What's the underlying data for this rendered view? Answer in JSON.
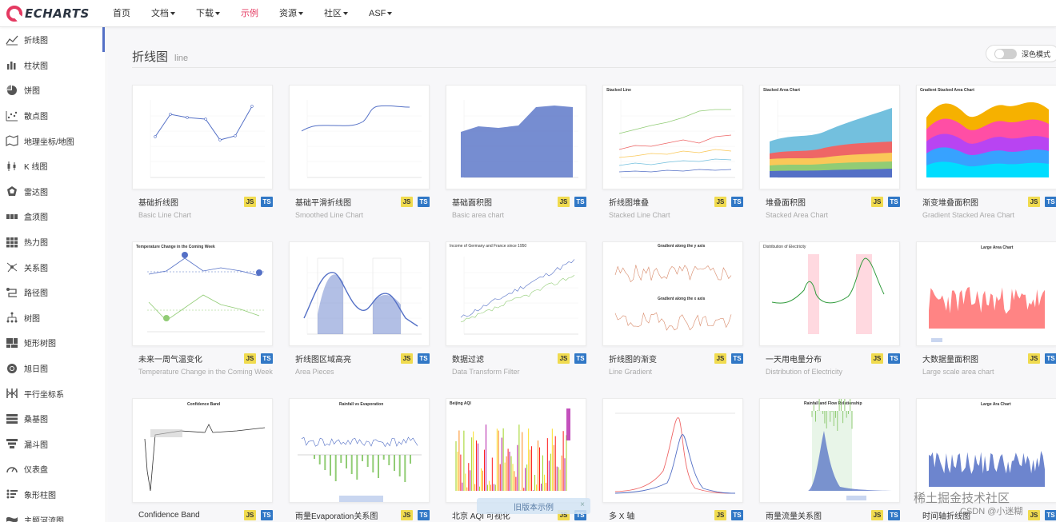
{
  "brand": {
    "logo_text": "ECHARTS"
  },
  "nav": {
    "items": [
      {
        "label": "首页",
        "dropdown": false,
        "active": false
      },
      {
        "label": "文档",
        "dropdown": true,
        "active": false
      },
      {
        "label": "下载",
        "dropdown": true,
        "active": false
      },
      {
        "label": "示例",
        "dropdown": false,
        "active": true
      },
      {
        "label": "资源",
        "dropdown": true,
        "active": false
      },
      {
        "label": "社区",
        "dropdown": true,
        "active": false
      },
      {
        "label": "ASF",
        "dropdown": true,
        "active": false
      }
    ]
  },
  "sidebar": {
    "items": [
      {
        "label": "折线图",
        "icon": "line-chart-icon"
      },
      {
        "label": "柱状图",
        "icon": "bar-chart-icon"
      },
      {
        "label": "饼图",
        "icon": "pie-chart-icon"
      },
      {
        "label": "散点图",
        "icon": "scatter-chart-icon"
      },
      {
        "label": "地理坐标/地图",
        "icon": "map-icon"
      },
      {
        "label": "K 线图",
        "icon": "candlestick-icon"
      },
      {
        "label": "雷达图",
        "icon": "radar-icon"
      },
      {
        "label": "盒须图",
        "icon": "boxplot-icon"
      },
      {
        "label": "热力图",
        "icon": "heatmap-icon"
      },
      {
        "label": "关系图",
        "icon": "graph-icon"
      },
      {
        "label": "路径图",
        "icon": "lines-icon"
      },
      {
        "label": "树图",
        "icon": "tree-icon"
      },
      {
        "label": "矩形树图",
        "icon": "treemap-icon"
      },
      {
        "label": "旭日图",
        "icon": "sunburst-icon"
      },
      {
        "label": "平行坐标系",
        "icon": "parallel-icon"
      },
      {
        "label": "桑基图",
        "icon": "sankey-icon"
      },
      {
        "label": "漏斗图",
        "icon": "funnel-icon"
      },
      {
        "label": "仪表盘",
        "icon": "gauge-icon"
      },
      {
        "label": "象形柱图",
        "icon": "pictorial-bar-icon"
      },
      {
        "label": "主题河流图",
        "icon": "theme-river-icon"
      }
    ]
  },
  "header": {
    "title": "折线图",
    "subtitle": "line",
    "dark_mode_label": "深色模式"
  },
  "badges": {
    "js": "JS",
    "ts": "TS"
  },
  "cards": [
    {
      "title": "基础折线图",
      "subtitle": "Basic Line Chart",
      "thumb": "basic-line"
    },
    {
      "title": "基础平滑折线图",
      "subtitle": "Smoothed Line Chart",
      "thumb": "smooth-line"
    },
    {
      "title": "基础面积图",
      "subtitle": "Basic area chart",
      "thumb": "basic-area"
    },
    {
      "title": "折线图堆叠",
      "subtitle": "Stacked Line Chart",
      "thumb": "stacked-line"
    },
    {
      "title": "堆叠面积图",
      "subtitle": "Stacked Area Chart",
      "thumb": "stacked-area"
    },
    {
      "title": "渐变堆叠面积图",
      "subtitle": "Gradient Stacked Area Chart",
      "thumb": "gradient-stacked"
    },
    {
      "title": "未来一周气温变化",
      "subtitle": "Temperature Change in the Coming Week",
      "thumb": "temperature"
    },
    {
      "title": "折线图区域高亮",
      "subtitle": "Area Pieces",
      "thumb": "area-pieces"
    },
    {
      "title": "数据过滤",
      "subtitle": "Data Transform Filter",
      "thumb": "transform-filter"
    },
    {
      "title": "折线图的渐变",
      "subtitle": "Line Gradient",
      "thumb": "line-gradient"
    },
    {
      "title": "一天用电量分布",
      "subtitle": "Distribution of Electricity",
      "thumb": "electricity"
    },
    {
      "title": "大数据量面积图",
      "subtitle": "Large scale area chart",
      "thumb": "large-area"
    },
    {
      "title": "Confidence Band",
      "subtitle": "",
      "thumb": "confidence"
    },
    {
      "title": "雨量Evaporation关系图",
      "subtitle": "",
      "thumb": "rainfall-evap"
    },
    {
      "title": "北京 AQI 可视化",
      "subtitle": "",
      "thumb": "aqi"
    },
    {
      "title": "多 X 轴",
      "subtitle": "",
      "thumb": "multi-x"
    },
    {
      "title": "雨量流量关系图",
      "subtitle": "",
      "thumb": "rain-flow"
    },
    {
      "title": "时间轴折线图",
      "subtitle": "",
      "thumb": "time-axis"
    }
  ],
  "thumb_labels": {
    "stacked_line": "Stacked Line",
    "stacked_area": "Stacked Area Chart",
    "gradient_stacked": "Gradient Stacked Area Chart",
    "temperature": "Temperature Change in the Coming Week",
    "transform_filter": "Income of Germany and France since 1950",
    "gradient_y": "Gradient along the y axis",
    "gradient_x": "Gradient along the x axis",
    "electricity": "Distribution of Electricity",
    "large_area": "Large Area Chart",
    "confidence": "Confidence Band",
    "rainfall": "Rainfall vs Evaporation",
    "aqi": "Beijing AQI",
    "rain_flow": "Rainfall and Flow Relationship",
    "time_axis": "Large Ara Chart"
  },
  "old_examples_banner": "旧版本示例",
  "old_examples_close": "×",
  "watermark": {
    "line1": "稀土掘金技术社区",
    "line2": "CSDN @小迷糊"
  },
  "colors": {
    "accent": "#e43961",
    "primary": "#5470c6",
    "js_badge": "#f0db4f",
    "ts_badge": "#3178c6"
  }
}
